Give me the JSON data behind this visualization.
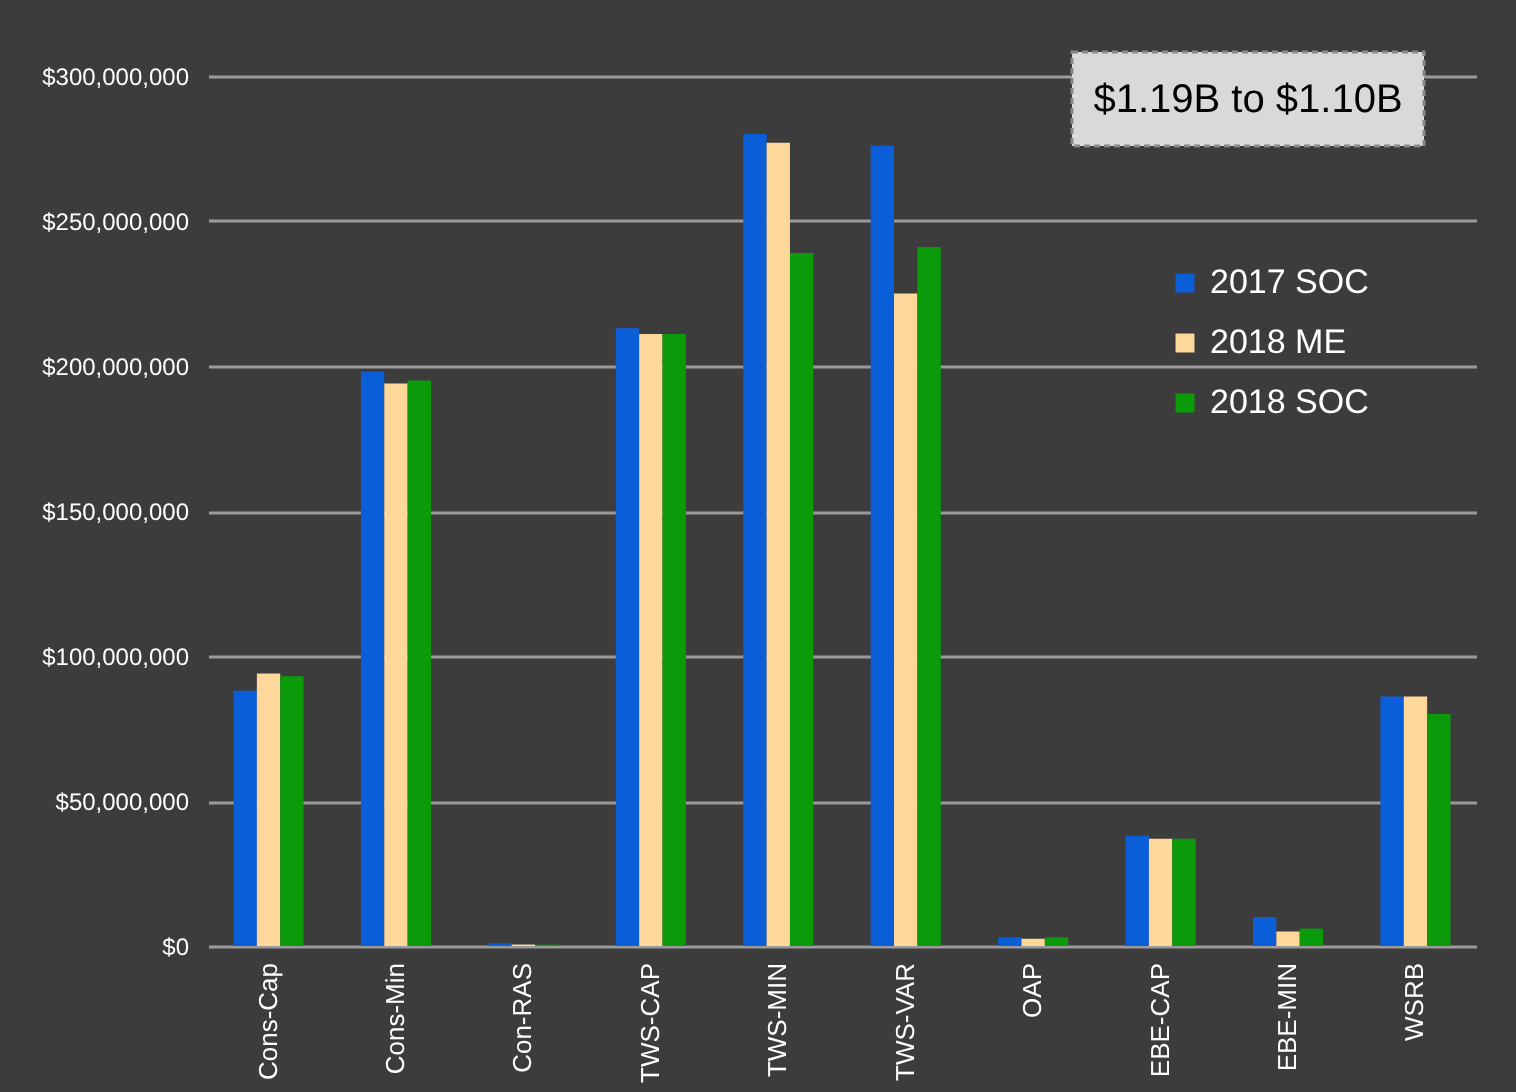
{
  "chart_data": {
    "type": "bar",
    "categories": [
      "Cons-Cap",
      "Cons-Min",
      "Con-RAS",
      "TWS-CAP",
      "TWS-MIN",
      "TWS-VAR",
      "OAP",
      "EBE-CAP",
      "EBE-MIN",
      "WSRB"
    ],
    "series": [
      {
        "name": "2017 SOC",
        "color": "#0a5fd8",
        "values": [
          88000000,
          198000000,
          1000000,
          213000000,
          280000000,
          276000000,
          3000000,
          38000000,
          10000000,
          86000000
        ]
      },
      {
        "name": "2018 ME",
        "color": "#fdd89a",
        "values": [
          94000000,
          194000000,
          500000,
          211000000,
          277000000,
          225000000,
          2500000,
          37000000,
          5000000,
          86000000
        ]
      },
      {
        "name": "2018 SOC",
        "color": "#0a9a0a",
        "values": [
          93000000,
          195000000,
          500000,
          211000000,
          239000000,
          241000000,
          3000000,
          37000000,
          6000000,
          80000000
        ]
      }
    ],
    "ylim": [
      0,
      300000000
    ],
    "yticks": [
      {
        "value": 0,
        "label": "$0"
      },
      {
        "value": 50000000,
        "label": "$50,000,000"
      },
      {
        "value": 100000000,
        "label": "$100,000,000"
      },
      {
        "value": 150000000,
        "label": "$150,000,000"
      },
      {
        "value": 200000000,
        "label": "$200,000,000"
      },
      {
        "value": 250000000,
        "label": "$250,000,000"
      },
      {
        "value": 300000000,
        "label": "$300,000,000"
      }
    ],
    "annotations": [
      "$1.19B to $1.10B"
    ],
    "grid": "y",
    "legend": "top right"
  }
}
